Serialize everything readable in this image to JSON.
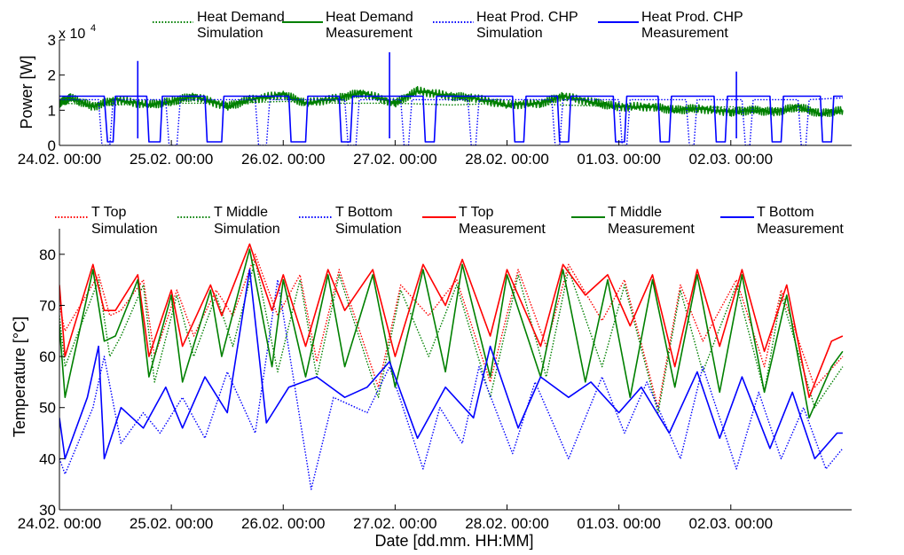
{
  "chart_data": [
    {
      "type": "line",
      "panel": "top",
      "title": "",
      "xlabel": "",
      "ylabel": "Power [W]",
      "y_multiplier": "x 10",
      "y_exponent": "4",
      "ylim": [
        0,
        3
      ],
      "y_ticks": [
        {
          "value": 0,
          "label": "0"
        },
        {
          "value": 1,
          "label": "1"
        },
        {
          "value": 2,
          "label": "2"
        },
        {
          "value": 3,
          "label": "3"
        }
      ],
      "xlim": [
        0,
        7.08
      ],
      "x_ticks": [
        {
          "value": 0,
          "label": "24.02. 00:00"
        },
        {
          "value": 1,
          "label": "25.02. 00:00"
        },
        {
          "value": 2,
          "label": "26.02. 00:00"
        },
        {
          "value": 3,
          "label": "27.02. 00:00"
        },
        {
          "value": 4,
          "label": "28.02. 00:00"
        },
        {
          "value": 5,
          "label": "01.03. 00:00"
        },
        {
          "value": 6,
          "label": "02.03. 00:00"
        }
      ],
      "grid": false,
      "legend_position": "top",
      "series": [
        {
          "name_line1": "Heat Demand",
          "name_line2": "Simulation",
          "color": "#008000",
          "style": "dotted",
          "x": [
            0,
            0.5,
            1.0,
            1.5,
            2.0,
            2.5,
            3.0,
            3.5,
            4.0,
            4.5,
            5.0,
            5.5,
            6.0,
            6.5,
            7.0
          ],
          "y": [
            1.2,
            1.15,
            1.2,
            1.2,
            1.25,
            1.2,
            1.2,
            1.15,
            1.2,
            1.15,
            1.1,
            1.05,
            1.1,
            1.0,
            1.0
          ]
        },
        {
          "name_line1": "Heat Demand",
          "name_line2": "Measurement",
          "color": "#008000",
          "style": "solid",
          "x": [
            0,
            0.1,
            0.3,
            0.5,
            0.8,
            1.0,
            1.2,
            1.5,
            1.7,
            2.0,
            2.2,
            2.5,
            2.7,
            3.0,
            3.2,
            3.5,
            3.7,
            4.0,
            4.3,
            4.5,
            4.8,
            5.0,
            5.3,
            5.5,
            5.7,
            6.0,
            6.2,
            6.4,
            6.6,
            6.8,
            7.0
          ],
          "y": [
            1.2,
            1.35,
            1.1,
            1.3,
            1.15,
            1.25,
            1.4,
            1.1,
            1.3,
            1.45,
            1.2,
            1.35,
            1.5,
            1.2,
            1.55,
            1.4,
            1.35,
            1.15,
            1.2,
            1.4,
            1.2,
            1.1,
            1.1,
            1.0,
            1.05,
            0.95,
            1.0,
            0.95,
            1.1,
            0.9,
            1.0
          ]
        },
        {
          "name_line1": "Heat Prod. CHP",
          "name_line2": "Simulation",
          "color": "#0000ff",
          "style": "dotted",
          "x": [
            0,
            0.35,
            0.38,
            0.45,
            0.48,
            0.95,
            0.98,
            1.05,
            1.08,
            1.75,
            1.78,
            1.85,
            1.88,
            2.55,
            2.58,
            2.65,
            2.68,
            3.05,
            3.08,
            3.12,
            3.15,
            3.65,
            3.68,
            3.72,
            3.75,
            4.4,
            4.43,
            4.47,
            4.5,
            5.0,
            5.03,
            5.07,
            5.1,
            5.6,
            5.63,
            5.67,
            5.7,
            6.1,
            6.13,
            6.17,
            6.2,
            6.6,
            6.63,
            6.67,
            6.7,
            7.0
          ],
          "y": [
            1.3,
            1.3,
            0.0,
            0.0,
            1.3,
            1.3,
            0.0,
            0.0,
            1.3,
            1.3,
            0.0,
            0.0,
            1.3,
            1.3,
            0.0,
            0.0,
            1.3,
            1.3,
            0.0,
            0.0,
            1.3,
            1.3,
            0.0,
            0.0,
            1.3,
            1.3,
            0.0,
            0.0,
            1.3,
            1.3,
            0.0,
            0.0,
            1.3,
            1.3,
            0.0,
            0.0,
            1.3,
            1.3,
            0.0,
            0.0,
            1.3,
            1.3,
            0.0,
            0.0,
            1.3,
            1.35
          ]
        },
        {
          "name_line1": "Heat Prod. CHP",
          "name_line2": "Measurement",
          "color": "#0000ff",
          "style": "solid",
          "x": [
            0,
            0.4,
            0.43,
            0.48,
            0.5,
            0.78,
            0.8,
            0.9,
            0.92,
            1.3,
            1.32,
            1.45,
            1.47,
            2.05,
            2.07,
            2.2,
            2.22,
            2.5,
            2.52,
            2.6,
            2.62,
            3.25,
            3.27,
            3.35,
            3.37,
            4.05,
            4.07,
            4.15,
            4.17,
            4.45,
            4.47,
            4.55,
            4.57,
            4.95,
            4.97,
            5.05,
            5.07,
            5.35,
            5.37,
            5.45,
            5.47,
            5.85,
            5.87,
            5.95,
            5.97,
            6.35,
            6.37,
            6.45,
            6.47,
            6.8,
            6.82,
            6.9,
            6.92,
            7.0
          ],
          "y": [
            1.4,
            1.4,
            0.1,
            0.1,
            1.4,
            1.4,
            0.1,
            0.1,
            1.4,
            1.4,
            0.1,
            0.1,
            1.4,
            1.4,
            0.1,
            0.1,
            1.4,
            1.4,
            0.1,
            0.1,
            1.4,
            1.4,
            0.1,
            0.1,
            1.4,
            1.4,
            0.1,
            0.1,
            1.4,
            1.4,
            0.1,
            0.1,
            1.4,
            1.4,
            0.1,
            0.1,
            1.4,
            1.4,
            0.1,
            0.1,
            1.4,
            1.4,
            0.1,
            0.1,
            1.4,
            1.4,
            0.1,
            0.1,
            1.4,
            1.4,
            0.1,
            0.1,
            1.4,
            1.4
          ]
        }
      ],
      "peaks": [
        {
          "x": 0.7,
          "y": 2.4
        },
        {
          "x": 2.95,
          "y": 2.65
        },
        {
          "x": 6.05,
          "y": 2.1
        }
      ]
    },
    {
      "type": "line",
      "panel": "bottom",
      "title": "",
      "xlabel": "Date [dd.mm. HH:MM]",
      "ylabel": "Temperature [°C]",
      "ylim": [
        30,
        85
      ],
      "y_ticks": [
        {
          "value": 30,
          "label": "30"
        },
        {
          "value": 40,
          "label": "40"
        },
        {
          "value": 50,
          "label": "50"
        },
        {
          "value": 60,
          "label": "60"
        },
        {
          "value": 70,
          "label": "70"
        },
        {
          "value": 80,
          "label": "80"
        }
      ],
      "xlim": [
        0,
        7.08
      ],
      "x_ticks": [
        {
          "value": 0,
          "label": "24.02. 00:00"
        },
        {
          "value": 1,
          "label": "25.02. 00:00"
        },
        {
          "value": 2,
          "label": "26.02. 00:00"
        },
        {
          "value": 3,
          "label": "27.02. 00:00"
        },
        {
          "value": 4,
          "label": "28.02. 00:00"
        },
        {
          "value": 5,
          "label": "01.03. 00:00"
        },
        {
          "value": 6,
          "label": "02.03. 00:00"
        }
      ],
      "grid": false,
      "legend_position": "top",
      "series": [
        {
          "name_line1": "T Top",
          "name_line2": "Simulation",
          "color": "#ff0000",
          "style": "dotted",
          "x": [
            0,
            0.05,
            0.35,
            0.45,
            0.55,
            0.75,
            0.85,
            1.05,
            1.2,
            1.4,
            1.55,
            1.75,
            1.95,
            2.15,
            2.3,
            2.5,
            2.85,
            3.05,
            3.3,
            3.55,
            3.85,
            4.1,
            4.35,
            4.55,
            4.85,
            5.05,
            5.35,
            5.55,
            5.75,
            6.05,
            6.3,
            6.45,
            6.75,
            7.0
          ],
          "y": [
            70,
            65,
            76,
            68,
            69,
            75,
            60,
            73,
            64,
            73,
            68,
            80,
            68,
            76,
            59,
            77,
            54,
            74,
            68,
            75,
            55,
            77,
            62,
            78,
            67,
            75,
            50,
            74,
            63,
            75,
            58,
            73,
            54,
            60
          ]
        },
        {
          "name_line1": "T Middle",
          "name_line2": "Simulation",
          "color": "#008000",
          "style": "dotted",
          "x": [
            0,
            0.05,
            0.35,
            0.45,
            0.55,
            0.75,
            0.85,
            1.05,
            1.2,
            1.4,
            1.55,
            1.75,
            1.95,
            2.15,
            2.3,
            2.5,
            2.85,
            3.05,
            3.3,
            3.55,
            3.85,
            4.1,
            4.35,
            4.55,
            4.85,
            5.05,
            5.35,
            5.55,
            5.75,
            6.05,
            6.3,
            6.45,
            6.75,
            7.0
          ],
          "y": [
            68,
            58,
            75,
            60,
            64,
            74,
            55,
            72,
            60,
            72,
            62,
            79,
            57,
            75,
            56,
            76,
            52,
            73,
            60,
            74,
            52,
            76,
            56,
            77,
            58,
            74,
            49,
            73,
            57,
            74,
            53,
            72,
            50,
            58
          ]
        },
        {
          "name_line1": "T Bottom",
          "name_line2": "Simulation",
          "color": "#0000ff",
          "style": "dotted",
          "x": [
            0,
            0.05,
            0.3,
            0.4,
            0.55,
            0.75,
            0.9,
            1.1,
            1.3,
            1.5,
            1.75,
            1.95,
            2.25,
            2.45,
            2.75,
            2.95,
            3.25,
            3.4,
            3.6,
            3.75,
            4.05,
            4.25,
            4.55,
            4.85,
            5.05,
            5.25,
            5.55,
            5.75,
            6.05,
            6.25,
            6.45,
            6.65,
            6.85,
            7.0
          ],
          "y": [
            40,
            37,
            50,
            60,
            43,
            49,
            45,
            52,
            44,
            57,
            45,
            75,
            34,
            52,
            49,
            58,
            38,
            50,
            43,
            58,
            41,
            55,
            40,
            56,
            45,
            55,
            40,
            58,
            38,
            53,
            40,
            50,
            38,
            42
          ]
        },
        {
          "name_line1": "T Top",
          "name_line2": "Measurement",
          "color": "#ff0000",
          "style": "solid",
          "x": [
            0,
            0.05,
            0.3,
            0.4,
            0.5,
            0.7,
            0.8,
            1.0,
            1.1,
            1.35,
            1.45,
            1.7,
            1.9,
            2.0,
            2.2,
            2.4,
            2.55,
            2.8,
            3.0,
            3.25,
            3.45,
            3.6,
            3.85,
            4.0,
            4.3,
            4.5,
            4.7,
            4.9,
            5.1,
            5.3,
            5.5,
            5.7,
            5.9,
            6.1,
            6.3,
            6.5,
            6.7,
            6.9,
            7.0
          ],
          "y": [
            74,
            60,
            78,
            69,
            69,
            76,
            60,
            73,
            62,
            74,
            68,
            82,
            69,
            76,
            62,
            77,
            69,
            77,
            60,
            78,
            70,
            79,
            64,
            77,
            62,
            78,
            72,
            76,
            66,
            76,
            58,
            77,
            62,
            77,
            61,
            74,
            52,
            63,
            64
          ]
        },
        {
          "name_line1": "T Middle",
          "name_line2": "Measurement",
          "color": "#008000",
          "style": "solid",
          "x": [
            0,
            0.05,
            0.3,
            0.4,
            0.5,
            0.7,
            0.8,
            1.0,
            1.1,
            1.35,
            1.45,
            1.7,
            1.9,
            2.0,
            2.2,
            2.4,
            2.55,
            2.8,
            3.0,
            3.25,
            3.45,
            3.6,
            3.85,
            4.0,
            4.3,
            4.5,
            4.7,
            4.9,
            5.1,
            5.3,
            5.5,
            5.7,
            5.9,
            6.1,
            6.3,
            6.5,
            6.7,
            6.9,
            7.0
          ],
          "y": [
            66,
            52,
            77,
            63,
            64,
            75,
            56,
            72,
            55,
            73,
            60,
            81,
            58,
            75,
            56,
            76,
            58,
            76,
            54,
            77,
            57,
            78,
            56,
            76,
            56,
            77,
            55,
            75,
            52,
            75,
            54,
            76,
            53,
            76,
            53,
            72,
            48,
            58,
            61
          ]
        },
        {
          "name_line1": "T Bottom",
          "name_line2": "Measurement",
          "color": "#0000ff",
          "style": "solid",
          "x": [
            0,
            0.05,
            0.25,
            0.35,
            0.4,
            0.55,
            0.75,
            0.95,
            1.1,
            1.3,
            1.5,
            1.7,
            1.85,
            2.05,
            2.3,
            2.55,
            2.75,
            2.95,
            3.2,
            3.45,
            3.7,
            3.85,
            4.1,
            4.3,
            4.55,
            4.75,
            5.0,
            5.2,
            5.45,
            5.7,
            5.9,
            6.1,
            6.35,
            6.55,
            6.75,
            6.95,
            7.0
          ],
          "y": [
            48,
            40,
            52,
            62,
            40,
            50,
            46,
            54,
            46,
            56,
            49,
            77,
            47,
            54,
            56,
            52,
            54,
            59,
            44,
            54,
            48,
            62,
            46,
            56,
            52,
            55,
            49,
            54,
            45,
            57,
            44,
            56,
            42,
            53,
            40,
            45,
            45
          ]
        }
      ]
    }
  ]
}
